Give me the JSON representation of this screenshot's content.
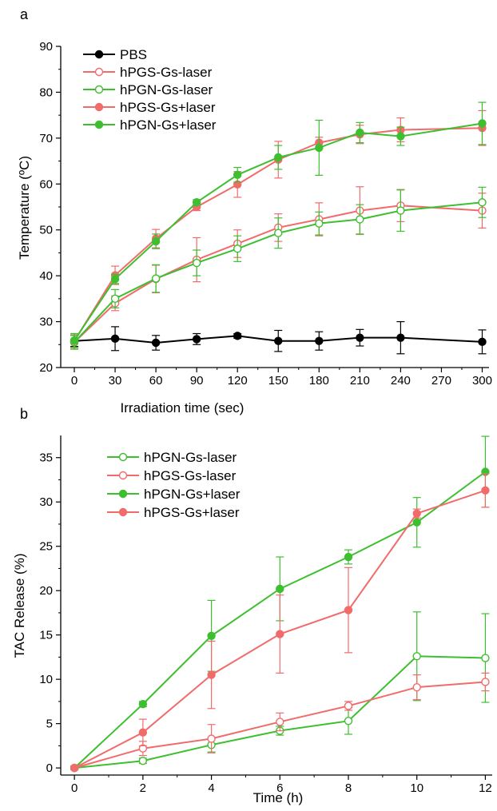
{
  "chart_data": [
    {
      "panel_label": "a",
      "type": "line",
      "xlabel": "Irradiation time (sec)",
      "ylabel": "Temperature (ºC)",
      "xlim": [
        -10,
        305
      ],
      "ylim": [
        20,
        90
      ],
      "xticks": [
        0,
        30,
        60,
        90,
        120,
        150,
        180,
        210,
        240,
        270,
        300
      ],
      "yticks": [
        20,
        30,
        40,
        50,
        60,
        70,
        80,
        90
      ],
      "grid": false,
      "legend_position": "top-left",
      "x": [
        0,
        30,
        60,
        90,
        120,
        150,
        180,
        210,
        240,
        300
      ],
      "series": [
        {
          "name": "PBS",
          "color": "#000000",
          "marker": "filled",
          "values": [
            25.8,
            26.3,
            25.4,
            26.2,
            26.9,
            25.8,
            25.8,
            26.5,
            26.5,
            25.6
          ],
          "errors": [
            1.2,
            2.6,
            1.6,
            1.2,
            0.5,
            2.3,
            2.0,
            1.8,
            3.5,
            2.6
          ]
        },
        {
          "name": "hPGS-Gs-laser",
          "color": "#f26b6b",
          "marker": "open",
          "values": [
            25.5,
            34.0,
            39.3,
            43.5,
            47.0,
            50.5,
            52.3,
            54.2,
            55.3,
            54.2
          ],
          "errors": [
            1.5,
            1.6,
            3.0,
            4.8,
            3.0,
            3.0,
            3.6,
            5.2,
            3.5,
            3.8
          ]
        },
        {
          "name": "hPGN-Gs-laser",
          "color": "#3dbf2f",
          "marker": "open",
          "values": [
            25.5,
            35.0,
            39.4,
            42.8,
            45.9,
            49.3,
            51.4,
            52.3,
            54.2,
            56.0
          ],
          "errors": [
            1.5,
            2.0,
            3.0,
            2.8,
            2.8,
            3.3,
            2.5,
            3.2,
            4.5,
            3.3
          ]
        },
        {
          "name": "hPGS-Gs+laser",
          "color": "#f26b6b",
          "marker": "filled",
          "values": [
            25.8,
            40.1,
            48.1,
            55.0,
            59.9,
            65.3,
            69.0,
            70.8,
            71.8,
            72.2
          ],
          "errors": [
            1.5,
            2.0,
            2.0,
            0.8,
            2.8,
            4.0,
            1.2,
            2.0,
            2.6,
            3.8
          ]
        },
        {
          "name": "hPGN-Gs+laser",
          "color": "#3dbf2f",
          "marker": "filled",
          "values": [
            25.9,
            39.3,
            47.5,
            56.0,
            62.0,
            65.8,
            67.9,
            71.2,
            70.4,
            73.2
          ],
          "errors": [
            1.5,
            1.0,
            1.6,
            0.6,
            1.6,
            2.6,
            6.0,
            2.2,
            2.0,
            4.6
          ]
        }
      ]
    },
    {
      "panel_label": "b",
      "type": "line",
      "xlabel": "Time (h)",
      "ylabel": "TAC Release (%)",
      "xlim": [
        -0.4,
        12.2
      ],
      "ylim": [
        -0.8,
        37.5
      ],
      "xticks": [
        0,
        2,
        4,
        6,
        8,
        10,
        12
      ],
      "yticks": [
        0,
        5,
        10,
        15,
        20,
        25,
        30,
        35
      ],
      "grid": false,
      "legend_position": "top-left",
      "x": [
        0,
        2,
        4,
        6,
        8,
        10,
        12
      ],
      "series": [
        {
          "name": "hPGN-Gs-laser",
          "color": "#3dbf2f",
          "marker": "open",
          "values": [
            0.0,
            0.8,
            2.6,
            4.2,
            5.3,
            12.6,
            12.4
          ],
          "errors": [
            0.2,
            0.3,
            0.8,
            0.5,
            1.5,
            5.0,
            5.0
          ]
        },
        {
          "name": "hPGS-Gs-laser",
          "color": "#f26b6b",
          "marker": "open",
          "values": [
            0.0,
            2.2,
            3.3,
            5.2,
            7.0,
            9.1,
            9.7
          ],
          "errors": [
            0.2,
            0.8,
            1.6,
            1.0,
            0.5,
            1.4,
            1.0
          ]
        },
        {
          "name": "hPGN-Gs+laser",
          "color": "#3dbf2f",
          "marker": "filled",
          "values": [
            0.0,
            7.2,
            14.9,
            20.2,
            23.8,
            27.7,
            33.4
          ],
          "errors": [
            0.2,
            0.3,
            4.0,
            3.6,
            0.8,
            2.8,
            4.0
          ]
        },
        {
          "name": "hPGS-Gs+laser",
          "color": "#f26b6b",
          "marker": "filled",
          "values": [
            0.0,
            4.0,
            10.5,
            15.1,
            17.8,
            28.7,
            31.3
          ],
          "errors": [
            0.2,
            1.5,
            3.8,
            4.4,
            4.8,
            0.5,
            1.9
          ]
        }
      ]
    }
  ]
}
